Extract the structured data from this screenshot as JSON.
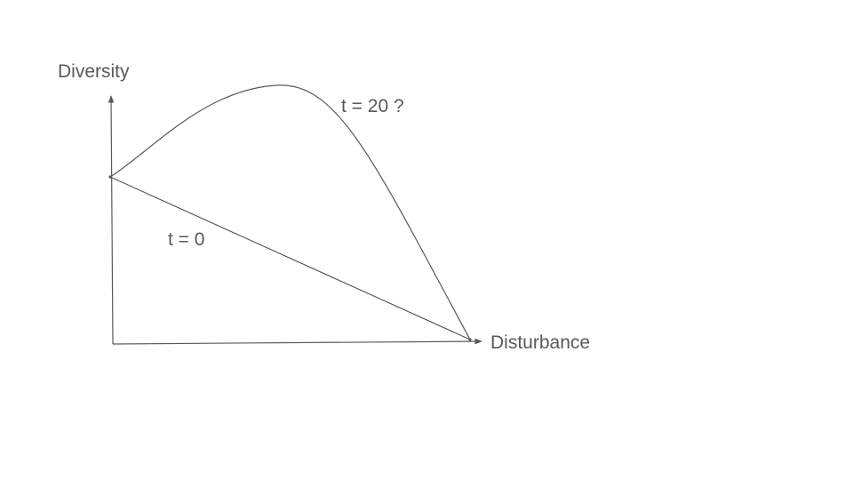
{
  "diagram": {
    "y_axis_label": "Diversity",
    "x_axis_label": "Disturbance",
    "curves": {
      "t0_label": "t = 0",
      "t20_label": "t = 20 ?"
    },
    "colors": {
      "line": "#5a5a5a",
      "text": "#595959",
      "background": "#ffffff"
    }
  }
}
